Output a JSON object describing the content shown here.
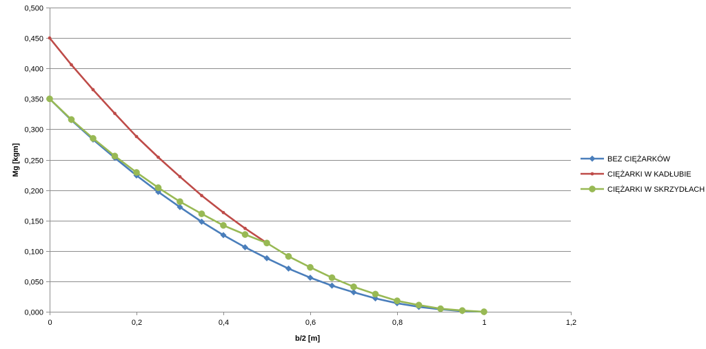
{
  "chart_data": {
    "type": "line",
    "title": "",
    "xlabel": "b/2 [m]",
    "ylabel": "Mg [kgm]",
    "xlim": [
      0,
      1.2
    ],
    "ylim": [
      0,
      0.5
    ],
    "x_ticks": [
      "0",
      "0,2",
      "0,4",
      "0,6",
      "0,8",
      "1",
      "1,2"
    ],
    "y_ticks": [
      "0,000",
      "0,050",
      "0,100",
      "0,150",
      "0,200",
      "0,250",
      "0,300",
      "0,350",
      "0,400",
      "0,450",
      "0,500"
    ],
    "grid": "horizontal",
    "legend_position": "right",
    "series": [
      {
        "name": "BEZ CIĘŻARKÓW",
        "color": "#4a7ebb",
        "marker": "diamond",
        "x": [
          0,
          0.05,
          0.1,
          0.15,
          0.2,
          0.25,
          0.3,
          0.35,
          0.4,
          0.45,
          0.5,
          0.55,
          0.6,
          0.65,
          0.7,
          0.75,
          0.8,
          0.85,
          0.9,
          0.95,
          1.0
        ],
        "y": [
          0.35,
          0.315,
          0.283,
          0.253,
          0.224,
          0.197,
          0.172,
          0.148,
          0.126,
          0.106,
          0.088,
          0.071,
          0.056,
          0.043,
          0.032,
          0.022,
          0.014,
          0.008,
          0.004,
          0.001,
          0.0
        ]
      },
      {
        "name": "CIĘŻARKI W KADŁUBIE",
        "color": "#be4b48",
        "marker": "dot",
        "x": [
          0,
          0.05,
          0.1,
          0.15,
          0.2,
          0.25,
          0.3,
          0.35,
          0.4,
          0.45,
          0.5
        ],
        "y": [
          0.45,
          0.406,
          0.365,
          0.326,
          0.288,
          0.254,
          0.222,
          0.191,
          0.163,
          0.137,
          0.113
        ]
      },
      {
        "name": "CIĘŻARKI W SKRZYDŁACH",
        "color": "#98b954",
        "marker": "circle",
        "x": [
          0,
          0.05,
          0.1,
          0.15,
          0.2,
          0.25,
          0.3,
          0.35,
          0.4,
          0.45,
          0.5,
          0.55,
          0.6,
          0.65,
          0.7,
          0.75,
          0.8,
          0.85,
          0.9,
          0.95,
          1.0
        ],
        "y": [
          0.35,
          0.316,
          0.285,
          0.256,
          0.229,
          0.204,
          0.181,
          0.161,
          0.142,
          0.127,
          0.113,
          0.091,
          0.073,
          0.056,
          0.041,
          0.029,
          0.018,
          0.011,
          0.005,
          0.002,
          0.0
        ]
      }
    ]
  }
}
